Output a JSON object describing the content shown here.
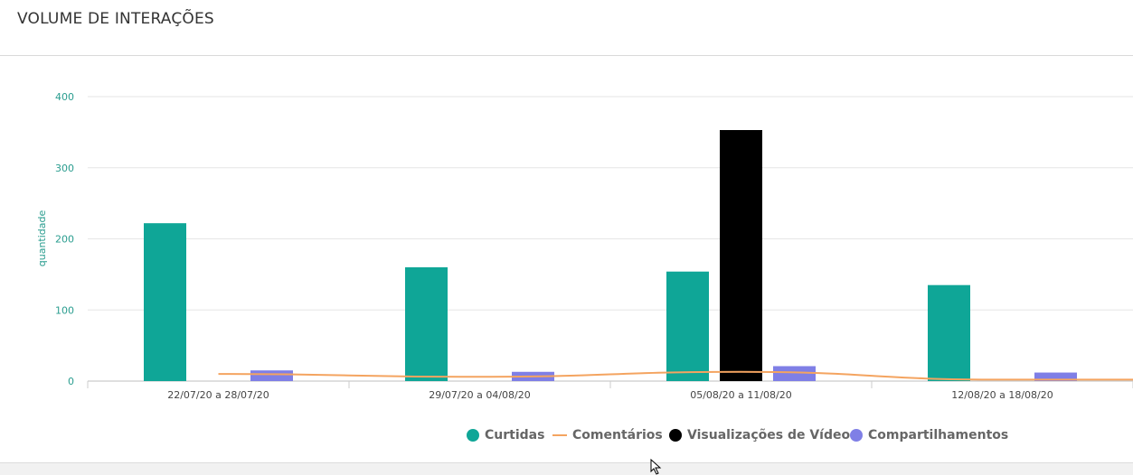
{
  "card": {
    "title": "VOLUME DE INTERAÇÕES"
  },
  "chart_data": {
    "type": "bar",
    "ylabel": "quantidade",
    "ylim": [
      0,
      400
    ],
    "yticks": [
      0,
      100,
      200,
      300,
      400
    ],
    "grid": true,
    "legend_position": "bottom",
    "categories": [
      "22/07/20 a 28/07/20",
      "29/07/20 a 04/08/20",
      "05/08/20 a 11/08/20",
      "12/08/20 a 18/08/20"
    ],
    "series": [
      {
        "name": "Curtidas",
        "kind": "bar",
        "color": "#0fa697",
        "values": [
          222,
          160,
          154,
          135
        ]
      },
      {
        "name": "Comentários",
        "kind": "line",
        "color": "#f4a460",
        "values": [
          10,
          6,
          13,
          2
        ]
      },
      {
        "name": "Visualizações de Vídeos",
        "kind": "bar",
        "color": "#000000",
        "values": [
          0,
          0,
          353,
          0
        ]
      },
      {
        "name": "Compartilhamentos",
        "kind": "bar",
        "color": "#7f7fe6",
        "values": [
          15,
          13,
          21,
          12
        ]
      }
    ]
  },
  "icons": {
    "cursor": "mouse-pointer-icon"
  }
}
